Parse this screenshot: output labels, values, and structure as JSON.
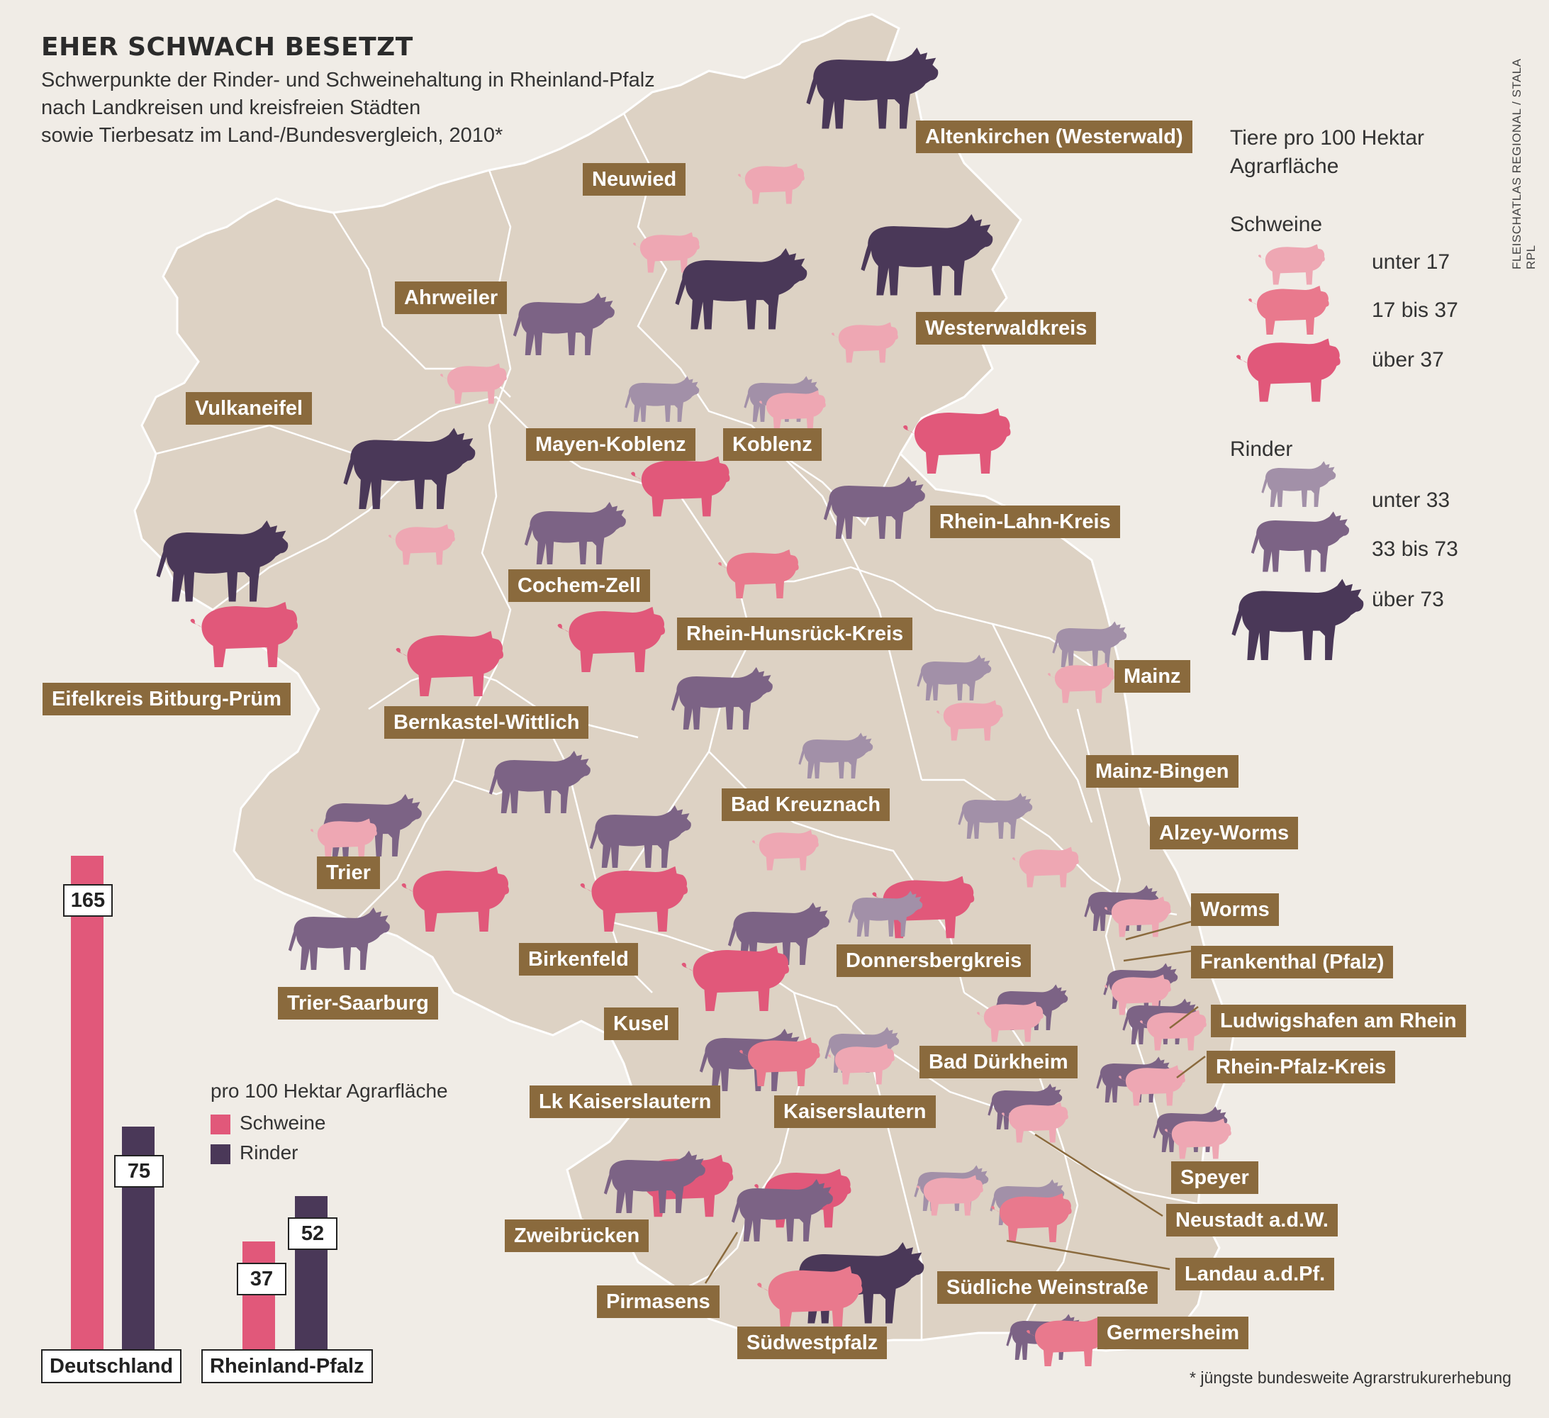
{
  "title": "EHER SCHWACH BESETZT",
  "subtitle_lines": [
    "Schwerpunkte der Rinder- und Schweinehaltung in Rheinland-Pfalz",
    "nach Landkreisen und kreisfreien Städten",
    "sowie Tierbesatz im Land-/Bundesvergleich, 2010*"
  ],
  "source": "FLEISCHATLAS REGIONAL / STALA RPL",
  "footnote": "* jüngste bundesweite Agrarstrukurerhebung",
  "colors": {
    "map_land": "#ddd2c4",
    "background": "#f0ece6",
    "label_bg": "#8a6a3d",
    "schweine_low": "#eea7b3",
    "schweine_mid": "#e9798d",
    "schweine_high": "#e1587a",
    "rinder_low": "#a290a8",
    "rinder_mid": "#7c6385",
    "rinder_high": "#4a3858"
  },
  "legend": {
    "heading": [
      "Tiere pro 100 Hektar",
      "Agrarfläche"
    ],
    "schweine_title": "Schweine",
    "schweine_classes": [
      "unter 17",
      "17 bis 37",
      "über 37"
    ],
    "rinder_title": "Rinder",
    "rinder_classes": [
      "unter 33",
      "33 bis 73",
      "über 73"
    ]
  },
  "regions": [
    {
      "name": "Altenkirchen (Westerwald)",
      "schweine": "unter 17",
      "rinder": "über 73"
    },
    {
      "name": "Neuwied",
      "schweine": "unter 17",
      "rinder": "über 73"
    },
    {
      "name": "Westerwaldkreis",
      "schweine": "unter 17",
      "rinder": "über 73"
    },
    {
      "name": "Ahrweiler",
      "schweine": "unter 17",
      "rinder": "33 bis 73"
    },
    {
      "name": "Vulkaneifel",
      "schweine": "unter 17",
      "rinder": "über 73"
    },
    {
      "name": "Mayen-Koblenz",
      "schweine": "über 37",
      "rinder": "unter 33"
    },
    {
      "name": "Koblenz",
      "schweine": "unter 17",
      "rinder": "unter 33"
    },
    {
      "name": "Rhein-Lahn-Kreis",
      "schweine": "über 37",
      "rinder": "33 bis 73"
    },
    {
      "name": "Cochem-Zell",
      "schweine": "17 bis 37",
      "rinder": "33 bis 73"
    },
    {
      "name": "Rhein-Hunsrück-Kreis",
      "schweine": "über 37",
      "rinder": "33 bis 73"
    },
    {
      "name": "Eifelkreis Bitburg-Prüm",
      "schweine": "über 37",
      "rinder": "über 73"
    },
    {
      "name": "Bernkastel-Wittlich",
      "schweine": "über 37",
      "rinder": "33 bis 73"
    },
    {
      "name": "Mainz",
      "schweine": "unter 17",
      "rinder": "unter 33"
    },
    {
      "name": "Mainz-Bingen",
      "schweine": "unter 17",
      "rinder": "unter 33"
    },
    {
      "name": "Bad Kreuznach",
      "schweine": "unter 17",
      "rinder": "unter 33"
    },
    {
      "name": "Alzey-Worms",
      "schweine": "unter 17",
      "rinder": "unter 33"
    },
    {
      "name": "Trier",
      "schweine": "unter 17",
      "rinder": "33 bis 73"
    },
    {
      "name": "Trier-Saarburg",
      "schweine": "über 37",
      "rinder": "33 bis 73"
    },
    {
      "name": "Birkenfeld",
      "schweine": "über 37",
      "rinder": "33 bis 73"
    },
    {
      "name": "Donnersbergkreis",
      "schweine": "über 37",
      "rinder": "unter 33"
    },
    {
      "name": "Worms",
      "schweine": "unter 17",
      "rinder": "33 bis 73"
    },
    {
      "name": "Frankenthal (Pfalz)",
      "schweine": "unter 17",
      "rinder": "33 bis 73"
    },
    {
      "name": "Ludwigshafen am Rhein",
      "schweine": "unter 17",
      "rinder": "33 bis 73"
    },
    {
      "name": "Rhein-Pfalz-Kreis",
      "schweine": "unter 17",
      "rinder": "33 bis 73"
    },
    {
      "name": "Kusel",
      "schweine": "über 37",
      "rinder": "33 bis 73"
    },
    {
      "name": "Bad Dürkheim",
      "schweine": "unter 17",
      "rinder": "33 bis 73"
    },
    {
      "name": "Lk Kaiserslautern",
      "schweine": "17 bis 37",
      "rinder": "33 bis 73"
    },
    {
      "name": "Kaiserslautern",
      "schweine": "unter 17",
      "rinder": "unter 33"
    },
    {
      "name": "Speyer",
      "schweine": "unter 17",
      "rinder": "33 bis 73"
    },
    {
      "name": "Neustadt a.d.W.",
      "schweine": "unter 17",
      "rinder": "33 bis 73"
    },
    {
      "name": "Zweibrücken",
      "schweine": "über 37",
      "rinder": "33 bis 73"
    },
    {
      "name": "Landau a.d.Pf.",
      "schweine": "17 bis 37",
      "rinder": "unter 33"
    },
    {
      "name": "Pirmasens",
      "schweine": "über 37",
      "rinder": "33 bis 73"
    },
    {
      "name": "Südliche Weinstraße",
      "schweine": "unter 17",
      "rinder": "unter 33"
    },
    {
      "name": "Südwestpfalz",
      "schweine": "17 bis 37",
      "rinder": "über 73"
    },
    {
      "name": "Germersheim",
      "schweine": "17 bis 37",
      "rinder": "33 bis 73"
    }
  ],
  "bars": {
    "unit_label": "pro 100 Hektar Agrarfläche",
    "series_labels": [
      "Schweine",
      "Rinder"
    ],
    "groups": [
      {
        "name": "Deutschland",
        "schweine": 165,
        "rinder": 75
      },
      {
        "name": "Rheinland-Pfalz",
        "schweine": 37,
        "rinder": 52
      }
    ]
  }
}
